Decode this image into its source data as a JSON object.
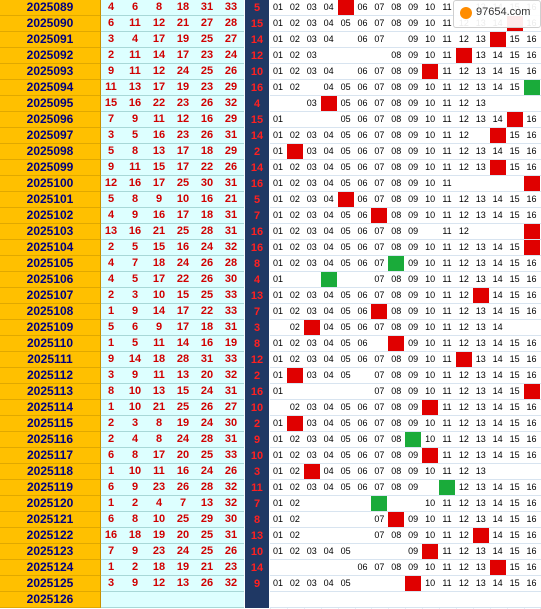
{
  "watermark": {
    "text": "97654.com"
  },
  "rows": [
    {
      "issue": "2025089",
      "reds": [
        "4",
        "6",
        "8",
        "18",
        "31",
        "33"
      ],
      "blue": "5",
      "dist": [
        "01",
        "02",
        "03",
        "04",
        "",
        "06",
        "07",
        "08",
        "09",
        "10",
        "11",
        "",
        "13",
        "14",
        "15",
        "16"
      ],
      "hit": 5,
      "hitColor": "red"
    },
    {
      "issue": "2025090",
      "reds": [
        "6",
        "11",
        "12",
        "21",
        "27",
        "28"
      ],
      "blue": "15",
      "dist": [
        "01",
        "02",
        "03",
        "04",
        "05",
        "06",
        "07",
        "08",
        "09",
        "10",
        "11",
        "12",
        "13",
        "14",
        "",
        "16"
      ],
      "hit": 15,
      "hitColor": "red"
    },
    {
      "issue": "2025091",
      "reds": [
        "3",
        "4",
        "17",
        "19",
        "25",
        "27"
      ],
      "blue": "14",
      "dist": [
        "01",
        "02",
        "03",
        "04",
        "",
        "06",
        "07",
        "",
        "09",
        "10",
        "11",
        "12",
        "13",
        "",
        "15",
        "16"
      ],
      "hit": 14,
      "hitColor": "red"
    },
    {
      "issue": "2025092",
      "reds": [
        "2",
        "11",
        "14",
        "17",
        "23",
        "24"
      ],
      "blue": "12",
      "dist": [
        "01",
        "02",
        "03",
        "",
        "",
        "",
        "",
        "08",
        "09",
        "10",
        "11",
        "",
        "13",
        "14",
        "15",
        "16"
      ],
      "hit": 12,
      "hitColor": "red"
    },
    {
      "issue": "2025093",
      "reds": [
        "9",
        "11",
        "12",
        "24",
        "25",
        "26"
      ],
      "blue": "10",
      "dist": [
        "01",
        "02",
        "03",
        "04",
        "",
        "06",
        "07",
        "08",
        "09",
        "",
        "11",
        "12",
        "13",
        "14",
        "15",
        "16"
      ],
      "hit": 10,
      "hitColor": "red"
    },
    {
      "issue": "2025094",
      "reds": [
        "11",
        "13",
        "17",
        "19",
        "23",
        "29"
      ],
      "blue": "16",
      "dist": [
        "01",
        "02",
        "",
        "04",
        "05",
        "06",
        "07",
        "08",
        "09",
        "10",
        "11",
        "12",
        "13",
        "14",
        "15",
        ""
      ],
      "hit": 16,
      "hitColor": "green"
    },
    {
      "issue": "2025095",
      "reds": [
        "15",
        "16",
        "22",
        "23",
        "26",
        "32"
      ],
      "blue": "4",
      "dist": [
        "",
        "",
        "03",
        "",
        "05",
        "06",
        "07",
        "08",
        "09",
        "10",
        "11",
        "12",
        "13",
        "",
        "",
        ""
      ],
      "hit": 4,
      "hitColor": "red"
    },
    {
      "issue": "2025096",
      "reds": [
        "7",
        "9",
        "11",
        "12",
        "16",
        "29"
      ],
      "blue": "15",
      "dist": [
        "01",
        "",
        "",
        "",
        "05",
        "06",
        "07",
        "08",
        "09",
        "10",
        "11",
        "12",
        "13",
        "14",
        "",
        "16"
      ],
      "hit": 15,
      "hitColor": "red"
    },
    {
      "issue": "2025097",
      "reds": [
        "3",
        "5",
        "16",
        "23",
        "26",
        "31"
      ],
      "blue": "14",
      "dist": [
        "01",
        "02",
        "03",
        "04",
        "05",
        "06",
        "07",
        "08",
        "09",
        "10",
        "11",
        "12",
        "",
        "",
        "15",
        "16"
      ],
      "hit": 14,
      "hitColor": "red"
    },
    {
      "issue": "2025098",
      "reds": [
        "5",
        "8",
        "13",
        "17",
        "18",
        "29"
      ],
      "blue": "2",
      "dist": [
        "01",
        "",
        "03",
        "04",
        "05",
        "06",
        "07",
        "08",
        "09",
        "10",
        "11",
        "12",
        "13",
        "14",
        "15",
        "16"
      ],
      "hit": 2,
      "hitColor": "red"
    },
    {
      "issue": "2025099",
      "reds": [
        "9",
        "11",
        "15",
        "17",
        "22",
        "26"
      ],
      "blue": "14",
      "dist": [
        "01",
        "02",
        "03",
        "04",
        "05",
        "06",
        "07",
        "08",
        "09",
        "10",
        "11",
        "12",
        "13",
        "",
        "15",
        "16"
      ],
      "hit": 14,
      "hitColor": "red"
    },
    {
      "issue": "2025100",
      "reds": [
        "12",
        "16",
        "17",
        "25",
        "30",
        "31"
      ],
      "blue": "16",
      "dist": [
        "01",
        "02",
        "03",
        "04",
        "05",
        "06",
        "07",
        "08",
        "09",
        "10",
        "11",
        "",
        "",
        "",
        "",
        ""
      ],
      "hit": 16,
      "hitColor": "red"
    },
    {
      "issue": "2025101",
      "reds": [
        "5",
        "8",
        "9",
        "10",
        "16",
        "21"
      ],
      "blue": "5",
      "dist": [
        "01",
        "02",
        "03",
        "04",
        "",
        "06",
        "07",
        "08",
        "09",
        "10",
        "11",
        "12",
        "13",
        "14",
        "15",
        "16"
      ],
      "hit": 5,
      "hitColor": "red"
    },
    {
      "issue": "2025102",
      "reds": [
        "4",
        "9",
        "16",
        "17",
        "18",
        "31"
      ],
      "blue": "7",
      "dist": [
        "01",
        "02",
        "03",
        "04",
        "05",
        "06",
        "",
        "08",
        "09",
        "10",
        "11",
        "12",
        "13",
        "14",
        "15",
        "16"
      ],
      "hit": 7,
      "hitColor": "red"
    },
    {
      "issue": "2025103",
      "reds": [
        "13",
        "16",
        "21",
        "25",
        "28",
        "31"
      ],
      "blue": "16",
      "dist": [
        "01",
        "02",
        "03",
        "04",
        "05",
        "06",
        "07",
        "08",
        "09",
        "",
        "11",
        "12",
        "",
        "",
        "",
        ""
      ],
      "hit": 16,
      "hitColor": "red"
    },
    {
      "issue": "2025104",
      "reds": [
        "2",
        "5",
        "15",
        "16",
        "24",
        "32"
      ],
      "blue": "16",
      "dist": [
        "01",
        "02",
        "03",
        "04",
        "05",
        "06",
        "07",
        "08",
        "09",
        "10",
        "11",
        "12",
        "13",
        "14",
        "15",
        ""
      ],
      "hit": 16,
      "hitColor": "red"
    },
    {
      "issue": "2025105",
      "reds": [
        "4",
        "7",
        "18",
        "24",
        "26",
        "28"
      ],
      "blue": "8",
      "dist": [
        "01",
        "02",
        "03",
        "04",
        "05",
        "06",
        "07",
        "",
        "09",
        "10",
        "11",
        "12",
        "13",
        "14",
        "15",
        "16"
      ],
      "hit": 8,
      "hitColor": "green"
    },
    {
      "issue": "2025106",
      "reds": [
        "4",
        "5",
        "17",
        "22",
        "26",
        "30"
      ],
      "blue": "4",
      "dist": [
        "01",
        "",
        "",
        "",
        "",
        "",
        "07",
        "08",
        "09",
        "10",
        "11",
        "12",
        "13",
        "14",
        "15",
        "16"
      ],
      "hit": 4,
      "hitColor": "green"
    },
    {
      "issue": "2025107",
      "reds": [
        "2",
        "3",
        "10",
        "15",
        "25",
        "33"
      ],
      "blue": "13",
      "dist": [
        "01",
        "02",
        "03",
        "04",
        "05",
        "06",
        "07",
        "08",
        "09",
        "10",
        "11",
        "12",
        "",
        "14",
        "15",
        "16"
      ],
      "hit": 13,
      "hitColor": "red"
    },
    {
      "issue": "2025108",
      "reds": [
        "1",
        "9",
        "14",
        "17",
        "22",
        "33"
      ],
      "blue": "7",
      "dist": [
        "01",
        "02",
        "03",
        "04",
        "05",
        "06",
        "",
        "08",
        "09",
        "10",
        "11",
        "12",
        "13",
        "14",
        "15",
        "16"
      ],
      "hit": 7,
      "hitColor": "red"
    },
    {
      "issue": "2025109",
      "reds": [
        "5",
        "6",
        "9",
        "17",
        "18",
        "31"
      ],
      "blue": "3",
      "dist": [
        "",
        "02",
        "",
        "04",
        "05",
        "06",
        "07",
        "08",
        "09",
        "10",
        "11",
        "12",
        "13",
        "14",
        "",
        ""
      ],
      "hit": 3,
      "hitColor": "red"
    },
    {
      "issue": "2025110",
      "reds": [
        "1",
        "5",
        "11",
        "14",
        "16",
        "19"
      ],
      "blue": "8",
      "dist": [
        "01",
        "02",
        "03",
        "04",
        "05",
        "06",
        "",
        "",
        "09",
        "10",
        "11",
        "12",
        "13",
        "14",
        "15",
        "16"
      ],
      "hit": 8,
      "hitColor": "red"
    },
    {
      "issue": "2025111",
      "reds": [
        "9",
        "14",
        "18",
        "28",
        "31",
        "33"
      ],
      "blue": "12",
      "dist": [
        "01",
        "02",
        "03",
        "04",
        "05",
        "06",
        "07",
        "08",
        "09",
        "10",
        "11",
        "",
        "13",
        "14",
        "15",
        "16"
      ],
      "hit": 12,
      "hitColor": "red"
    },
    {
      "issue": "2025112",
      "reds": [
        "3",
        "9",
        "11",
        "13",
        "20",
        "32"
      ],
      "blue": "2",
      "dist": [
        "01",
        "",
        "03",
        "04",
        "05",
        "",
        "07",
        "08",
        "09",
        "10",
        "11",
        "12",
        "13",
        "14",
        "15",
        "16"
      ],
      "hit": 2,
      "hitColor": "red"
    },
    {
      "issue": "2025113",
      "reds": [
        "8",
        "10",
        "13",
        "15",
        "24",
        "31"
      ],
      "blue": "16",
      "dist": [
        "01",
        "",
        "",
        "",
        "",
        "",
        "07",
        "08",
        "09",
        "10",
        "11",
        "12",
        "13",
        "14",
        "15",
        ""
      ],
      "hit": 16,
      "hitColor": "red"
    },
    {
      "issue": "2025114",
      "reds": [
        "1",
        "10",
        "21",
        "25",
        "26",
        "27"
      ],
      "blue": "10",
      "dist": [
        "",
        "02",
        "03",
        "04",
        "05",
        "06",
        "07",
        "08",
        "09",
        "",
        "11",
        "12",
        "13",
        "14",
        "15",
        "16"
      ],
      "hit": 10,
      "hitColor": "red"
    },
    {
      "issue": "2025115",
      "reds": [
        "2",
        "3",
        "8",
        "19",
        "24",
        "30"
      ],
      "blue": "2",
      "dist": [
        "01",
        "",
        "03",
        "04",
        "05",
        "06",
        "07",
        "08",
        "09",
        "10",
        "11",
        "12",
        "13",
        "14",
        "15",
        "16"
      ],
      "hit": 2,
      "hitColor": "red"
    },
    {
      "issue": "2025116",
      "reds": [
        "2",
        "4",
        "8",
        "24",
        "28",
        "31"
      ],
      "blue": "9",
      "dist": [
        "01",
        "02",
        "03",
        "04",
        "05",
        "06",
        "07",
        "08",
        "",
        "10",
        "11",
        "12",
        "13",
        "14",
        "15",
        "16"
      ],
      "hit": 9,
      "hitColor": "green"
    },
    {
      "issue": "2025117",
      "reds": [
        "6",
        "8",
        "17",
        "20",
        "25",
        "33"
      ],
      "blue": "10",
      "dist": [
        "01",
        "02",
        "03",
        "04",
        "05",
        "06",
        "07",
        "08",
        "09",
        "",
        "11",
        "12",
        "13",
        "14",
        "15",
        "16"
      ],
      "hit": 10,
      "hitColor": "red"
    },
    {
      "issue": "2025118",
      "reds": [
        "1",
        "10",
        "11",
        "16",
        "24",
        "26"
      ],
      "blue": "3",
      "dist": [
        "01",
        "02",
        "",
        "04",
        "05",
        "06",
        "07",
        "08",
        "09",
        "10",
        "11",
        "12",
        "13",
        "",
        "",
        ""
      ],
      "hit": 3,
      "hitColor": "red"
    },
    {
      "issue": "2025119",
      "reds": [
        "6",
        "9",
        "23",
        "26",
        "28",
        "32"
      ],
      "blue": "11",
      "dist": [
        "01",
        "02",
        "03",
        "04",
        "05",
        "06",
        "07",
        "08",
        "09",
        "",
        "",
        "12",
        "13",
        "14",
        "15",
        "16"
      ],
      "hit": 11,
      "hitColor": "green"
    },
    {
      "issue": "2025120",
      "reds": [
        "1",
        "2",
        "4",
        "7",
        "13",
        "32"
      ],
      "blue": "7",
      "dist": [
        "01",
        "02",
        "",
        "",
        "",
        "",
        "",
        "",
        "",
        "10",
        "11",
        "12",
        "13",
        "14",
        "15",
        "16"
      ],
      "hit": 7,
      "hitColor": "green"
    },
    {
      "issue": "2025121",
      "reds": [
        "6",
        "8",
        "10",
        "25",
        "29",
        "30"
      ],
      "blue": "8",
      "dist": [
        "01",
        "02",
        "",
        "",
        "",
        "",
        "07",
        "",
        "09",
        "10",
        "11",
        "12",
        "13",
        "14",
        "15",
        "16"
      ],
      "hit": 8,
      "hitColor": "red"
    },
    {
      "issue": "2025122",
      "reds": [
        "16",
        "18",
        "19",
        "20",
        "25",
        "31"
      ],
      "blue": "13",
      "dist": [
        "01",
        "02",
        "",
        "",
        "",
        "",
        "07",
        "08",
        "09",
        "10",
        "11",
        "12",
        "",
        "14",
        "15",
        "16"
      ],
      "hit": 13,
      "hitColor": "red"
    },
    {
      "issue": "2025123",
      "reds": [
        "7",
        "9",
        "23",
        "24",
        "25",
        "26"
      ],
      "blue": "10",
      "dist": [
        "01",
        "02",
        "03",
        "04",
        "05",
        "",
        "",
        "",
        "09",
        "",
        "11",
        "12",
        "13",
        "14",
        "15",
        "16"
      ],
      "hit": 10,
      "hitColor": "red"
    },
    {
      "issue": "2025124",
      "reds": [
        "1",
        "2",
        "18",
        "19",
        "21",
        "23"
      ],
      "blue": "14",
      "dist": [
        "",
        "",
        "",
        "",
        "",
        "06",
        "07",
        "08",
        "09",
        "10",
        "11",
        "12",
        "13",
        "",
        "15",
        "16"
      ],
      "hit": 14,
      "hitColor": "red"
    },
    {
      "issue": "2025125",
      "reds": [
        "3",
        "9",
        "12",
        "13",
        "26",
        "32"
      ],
      "blue": "9",
      "dist": [
        "01",
        "02",
        "03",
        "04",
        "05",
        "",
        "",
        "",
        "",
        "10",
        "11",
        "12",
        "13",
        "14",
        "15",
        "16"
      ],
      "hit": 9,
      "hitColor": "red"
    },
    {
      "issue": "2025126",
      "reds": [
        "",
        "",
        "",
        "",
        "",
        ""
      ],
      "blue": "",
      "dist": [
        "",
        "",
        "",
        "",
        "",
        "",
        "",
        "",
        "",
        "",
        "",
        "",
        "",
        "",
        "",
        ""
      ],
      "hit": 0,
      "hitColor": "none"
    }
  ]
}
